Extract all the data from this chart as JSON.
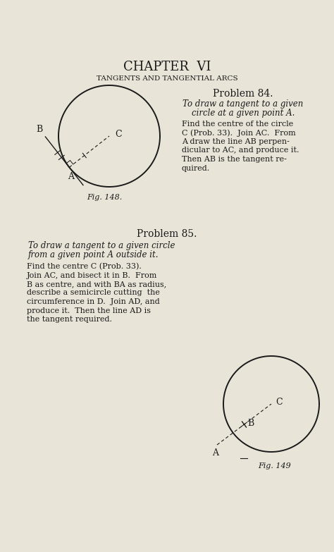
{
  "bg_color": "#e8e4d8",
  "text_color": "#1a1a1a",
  "title": "CHAPTER  VI",
  "subtitle": "TANGENTS AND TANGENTIAL ARCS",
  "prob84_title": "Problem 84.",
  "prob84_italic_1": "To draw a tangent to a given",
  "prob84_italic_2": "circle at a given point A.",
  "prob84_body": [
    "Find the centre of the circle",
    "C (Prob. 33).  Join AC.  From",
    "A draw the line AB perpen-",
    "dicular to AC, and produce it.",
    "Then AB is the tangent re-",
    "quired."
  ],
  "fig148_label": "Fig. 148.",
  "prob85_title": "Problem 85.",
  "prob85_italic_1": "To draw a tangent to a given circle",
  "prob85_italic_2": "from a given point A outside it.",
  "prob85_body": [
    "Find the centre C (Prob. 33).",
    "Join AC, and bisect it in B.  From",
    "B as centre, and with BA as radius,",
    "describe a semicircle cutting  the",
    "circumference in D.  Join AD, and",
    "produce it.  Then the line AD is",
    "the tangent required."
  ],
  "fig149_label": "Fig. 149"
}
